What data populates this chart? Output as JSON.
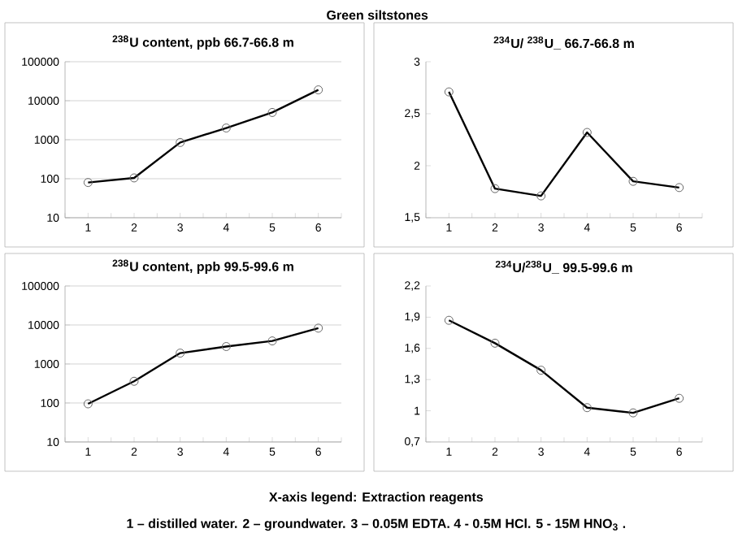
{
  "chart_data": [
    {
      "type": "line",
      "title": "$^{238}$U content, ppb  66.7-66.8 m",
      "categories": [
        "1",
        "2",
        "3",
        "4",
        "5",
        "6"
      ],
      "log": true,
      "grid": "y",
      "marker": "circle",
      "line_style": "solid",
      "ylim": [
        10,
        100000
      ],
      "yticks": [
        10,
        100,
        1000,
        10000,
        100000
      ],
      "annotations": [
        "Green siltstones"
      ],
      "series": [
        {
          "color": "#000000",
          "values": [
            80,
            105,
            850,
            2000,
            5000,
            19000
          ]
        }
      ]
    },
    {
      "type": "line",
      "title": "$^{234}$U/ $^{238}$U_ 66.7-66.8 m",
      "categories": [
        "1",
        "2",
        "3",
        "4",
        "5",
        "6"
      ],
      "marker": "circle",
      "line_style": "solid",
      "ylim": [
        1.5,
        3
      ],
      "yticks": [
        {
          "value": 1.5,
          "label": "1,5"
        },
        2,
        {
          "value": 2.5,
          "label": "2,5"
        },
        3
      ],
      "series": [
        {
          "color": "#000000",
          "values": [
            2.71,
            1.78,
            1.71,
            2.32,
            1.85,
            1.79
          ]
        }
      ]
    },
    {
      "type": "line",
      "title": "$^{238}$U content, ppb  99.5-99.6 m",
      "categories": [
        "1",
        "2",
        "3",
        "4",
        "5",
        "6"
      ],
      "log": true,
      "grid": "y",
      "marker": "circle",
      "line_style": "solid",
      "ylim": [
        10,
        100000
      ],
      "yticks": [
        10,
        100,
        1000,
        10000,
        100000
      ],
      "series": [
        {
          "color": "#000000",
          "values": [
            95,
            360,
            1900,
            2800,
            3900,
            8300
          ]
        }
      ]
    },
    {
      "type": "line",
      "title": "$^{234}$U/$^{238}$U_ 99.5-99.6 m",
      "categories": [
        "1",
        "2",
        "3",
        "4",
        "5",
        "6"
      ],
      "marker": "circle",
      "line_style": "solid",
      "ylim": [
        0.7,
        2.2
      ],
      "yticks": [
        {
          "value": 0.7,
          "label": "0,7"
        },
        1,
        {
          "value": 1.3,
          "label": "1,3"
        },
        {
          "value": 1.6,
          "label": "1,6"
        },
        {
          "value": 1.9,
          "label": "1,9"
        },
        {
          "value": 2.2,
          "label": "2,2"
        }
      ],
      "annotations": [
        "X-axis legend:  Extraction reagents",
        "1 – distilled water. 2 – groundwater.  3 –  0.05M EDTA. 4 - 0.5M HCl. 5 - 15M HNO$_{3}$ ."
      ],
      "series": [
        {
          "color": "#000000",
          "values": [
            1.87,
            1.65,
            1.39,
            1.03,
            0.98,
            1.12
          ]
        }
      ]
    }
  ]
}
